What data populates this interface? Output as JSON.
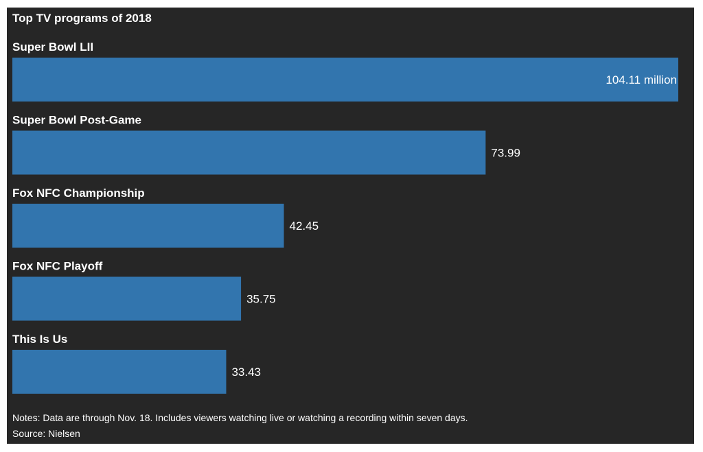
{
  "chart_data": {
    "type": "bar",
    "orientation": "horizontal",
    "title": "Top TV programs of 2018",
    "categories": [
      "Super Bowl LII",
      "Super Bowl Post-Game",
      "Fox NFC Championship",
      "Fox NFC Playoff",
      "This Is Us"
    ],
    "values": [
      104.11,
      73.99,
      42.45,
      35.75,
      33.43
    ],
    "value_labels": [
      "104.11 million",
      "73.99",
      "42.45",
      "35.75",
      "33.43"
    ],
    "unit": "million",
    "xlim": [
      0,
      104.11
    ],
    "grid": false,
    "legend": "none",
    "colors": {
      "bar": "#3275ae",
      "background": "#262626",
      "text": "#ffffff"
    }
  },
  "notes": "Notes: Data are through Nov. 18. Includes viewers watching live or watching a recording within seven days.",
  "source": "Source: Nielsen"
}
